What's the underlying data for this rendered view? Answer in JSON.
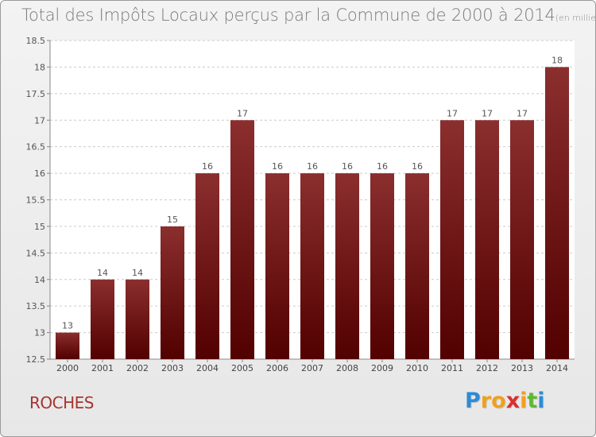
{
  "chart_data": {
    "type": "bar",
    "title": "Total des Impôts Locaux perçus par la Commune de 2000 à 2014",
    "subtitle": "(en milliers d'€)",
    "categories": [
      "2000",
      "2001",
      "2002",
      "2003",
      "2004",
      "2005",
      "2006",
      "2007",
      "2008",
      "2009",
      "2010",
      "2011",
      "2012",
      "2013",
      "2014"
    ],
    "values": [
      13,
      14,
      14,
      15,
      16,
      17,
      16,
      16,
      16,
      16,
      16,
      17,
      17,
      17,
      18
    ],
    "ylim": [
      12.5,
      18.5
    ],
    "yticks": [
      "12.5",
      "13",
      "13.5",
      "14",
      "14.5",
      "15",
      "15.5",
      "16",
      "16.5",
      "17",
      "17.5",
      "18",
      "18.5"
    ],
    "grid": true,
    "xlabel": "",
    "ylabel": "",
    "bar_color_top": "#8b2e2e",
    "bar_color_bottom": "#520000"
  },
  "commune": "ROCHES",
  "logo": {
    "letters": [
      "P",
      "r",
      "o",
      "x",
      "i",
      "t",
      "i"
    ],
    "colors": [
      "#2e8bd6",
      "#f0a020",
      "#f0a020",
      "#d83030",
      "#f0a020",
      "#5fb832",
      "#2e8bd6"
    ]
  }
}
